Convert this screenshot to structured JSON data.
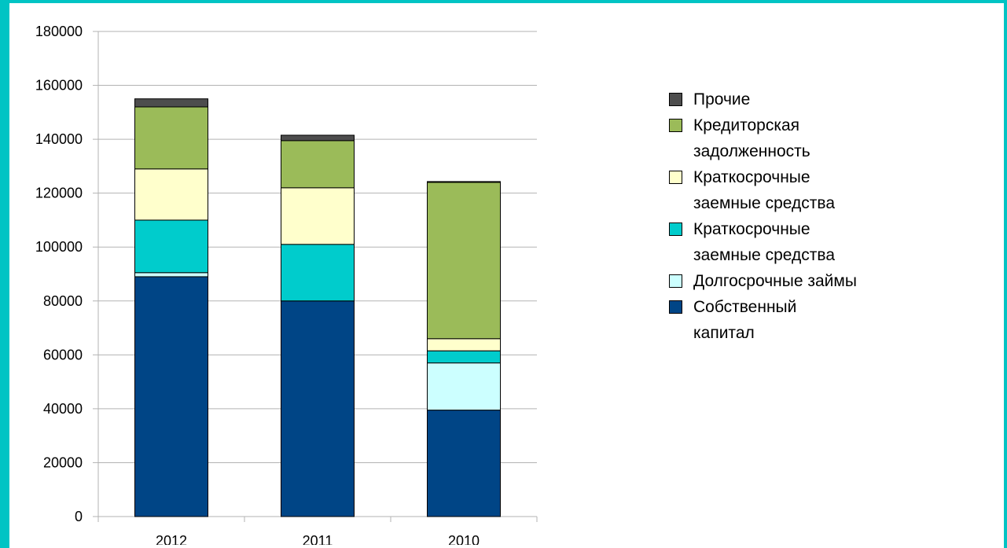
{
  "chart_data": {
    "type": "stacked_bar",
    "categories": [
      "2012",
      "2011",
      "2010"
    ],
    "series": [
      {
        "name": "Собственный\nкапитал",
        "color": "#004586",
        "values": [
          89000,
          80000,
          39500
        ]
      },
      {
        "name": "Долгосрочные займы",
        "color": "#ccffff",
        "values": [
          1500,
          0,
          17500
        ]
      },
      {
        "name": "Краткосрочные\nзаемные средства",
        "color": "#00cccc",
        "values": [
          19500,
          21000,
          4500
        ]
      },
      {
        "name": "Краткосрочные\nзаемные средства",
        "color": "#ffffcc",
        "values": [
          19000,
          21000,
          4500
        ]
      },
      {
        "name": "Кредиторская\nзадолженность",
        "color": "#9bbb59",
        "values": [
          23000,
          17500,
          58000
        ]
      },
      {
        "name": "Прочие",
        "color": "#4d4d4d",
        "values": [
          3000,
          2000,
          300
        ]
      }
    ],
    "ylim": [
      0,
      180000
    ],
    "yticks": [
      0,
      20000,
      40000,
      60000,
      80000,
      100000,
      120000,
      140000,
      160000,
      180000
    ],
    "grid": true,
    "legend": "right"
  }
}
